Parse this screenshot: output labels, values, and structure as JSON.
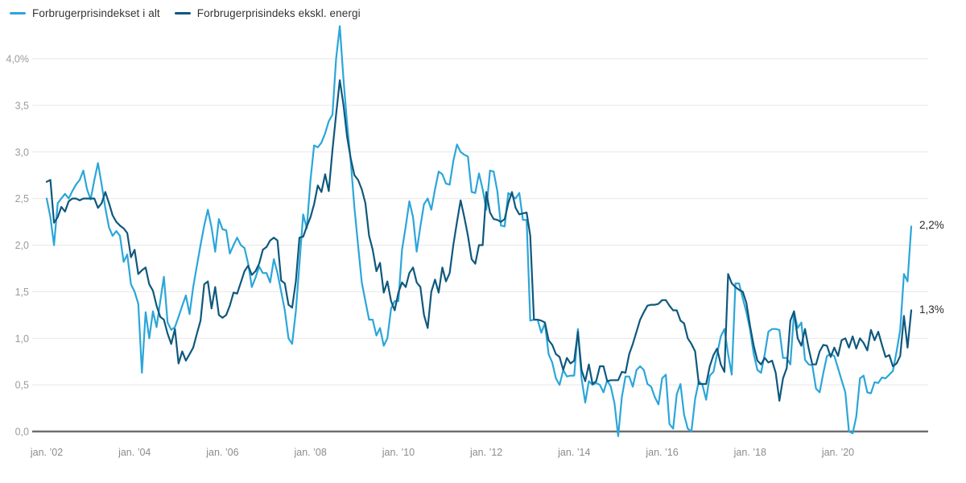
{
  "legend": [
    {
      "label": "Forbrugerprisindekset i alt",
      "color": "#2ba6d9"
    },
    {
      "label": "Forbrugerprisindeks ekskl. energi",
      "color": "#0f587d"
    }
  ],
  "end_labels": [
    {
      "text": "2,2%",
      "series": "Forbrugerprisindekset i alt"
    },
    {
      "text": "1,3%",
      "series": "Forbrugerprisindeks ekskl. energi"
    }
  ],
  "chart_data": {
    "type": "line",
    "unit": "%",
    "frequency": "monthly",
    "start": "jan. 2002",
    "end": "sep. 2021",
    "ylim": [
      0.0,
      4.0
    ],
    "y_tick_step": 0.5,
    "y_tick_labels": [
      "0,0",
      "0,5",
      "1,0",
      "1,5",
      "2,0",
      "2,5",
      "3,0",
      "3,5",
      "4,0%"
    ],
    "x_tick_labels": [
      "jan. ’02",
      "jan. ’04",
      "jan. ’06",
      "jan. ’08",
      "jan. ’10",
      "jan. ’12",
      "jan. ’14",
      "jan. ’16",
      "jan. ’18",
      "jan. ’20"
    ],
    "x_tick_months": [
      0,
      24,
      48,
      72,
      96,
      120,
      144,
      168,
      192,
      216
    ],
    "grid": true,
    "legend_position": "top-left",
    "series": [
      {
        "name": "Forbrugerprisindekset i alt",
        "color": "#2ba6d9",
        "final_value_label": "2,2%",
        "values": [
          2.5,
          2.3,
          2.0,
          2.45,
          2.5,
          2.55,
          2.5,
          2.58,
          2.65,
          2.7,
          2.8,
          2.6,
          2.49,
          2.7,
          2.88,
          2.65,
          2.4,
          2.19,
          2.1,
          2.15,
          2.1,
          1.82,
          1.9,
          1.58,
          1.5,
          1.37,
          0.63,
          1.28,
          1.0,
          1.29,
          1.12,
          1.4,
          1.66,
          1.17,
          1.09,
          1.12,
          1.23,
          1.35,
          1.46,
          1.26,
          1.55,
          1.78,
          2.0,
          2.21,
          2.38,
          2.19,
          1.93,
          2.28,
          2.17,
          2.16,
          1.91,
          2.0,
          2.08,
          2.0,
          1.97,
          1.8,
          1.55,
          1.65,
          1.77,
          1.7,
          1.7,
          1.6,
          1.85,
          1.7,
          1.5,
          1.3,
          1.0,
          0.94,
          1.29,
          1.8,
          2.33,
          2.18,
          2.7,
          3.07,
          3.05,
          3.1,
          3.2,
          3.33,
          3.4,
          4.0,
          4.35,
          3.79,
          3.3,
          2.9,
          2.4,
          2.0,
          1.6,
          1.4,
          1.2,
          1.2,
          1.03,
          1.11,
          0.92,
          1.0,
          1.32,
          1.4,
          1.4,
          1.95,
          2.2,
          2.47,
          2.3,
          1.93,
          2.2,
          2.44,
          2.5,
          2.38,
          2.6,
          2.79,
          2.76,
          2.66,
          2.65,
          2.9,
          3.08,
          3.0,
          2.97,
          2.95,
          2.57,
          2.56,
          2.77,
          2.6,
          2.38,
          2.8,
          2.79,
          2.58,
          2.21,
          2.2,
          2.56,
          2.53,
          2.5,
          2.56,
          2.27,
          2.27,
          1.19,
          1.2,
          1.2,
          1.06,
          1.16,
          0.83,
          0.74,
          0.57,
          0.5,
          0.66,
          0.59,
          0.6,
          0.6,
          1.1,
          0.57,
          0.31,
          0.54,
          0.5,
          0.52,
          0.5,
          0.42,
          0.55,
          0.48,
          0.3,
          -0.05,
          0.37,
          0.59,
          0.59,
          0.48,
          0.66,
          0.7,
          0.66,
          0.51,
          0.48,
          0.37,
          0.29,
          0.57,
          0.61,
          0.08,
          0.03,
          0.4,
          0.51,
          0.18,
          0.03,
          0.0,
          0.35,
          0.54,
          0.5,
          0.34,
          0.6,
          0.64,
          0.83,
          1.02,
          1.1,
          0.83,
          0.61,
          1.59,
          1.59,
          1.43,
          1.28,
          1.09,
          0.83,
          0.66,
          0.63,
          0.83,
          1.07,
          1.1,
          1.1,
          1.09,
          0.79,
          0.79,
          0.72,
          1.28,
          1.11,
          1.17,
          0.77,
          0.72,
          0.71,
          0.46,
          0.42,
          0.63,
          0.81,
          0.83,
          0.81,
          0.68,
          0.55,
          0.42,
          0.0,
          -0.02,
          0.16,
          0.57,
          0.6,
          0.42,
          0.41,
          0.53,
          0.52,
          0.58,
          0.57,
          0.61,
          0.65,
          0.86,
          1.09,
          1.69,
          1.61,
          2.2
        ]
      },
      {
        "name": "Forbrugerprisindeks ekskl. energi",
        "color": "#0f587d",
        "final_value_label": "1,3%",
        "values": [
          2.68,
          2.7,
          2.24,
          2.3,
          2.41,
          2.36,
          2.47,
          2.5,
          2.5,
          2.48,
          2.5,
          2.5,
          2.5,
          2.5,
          2.4,
          2.45,
          2.57,
          2.45,
          2.32,
          2.25,
          2.21,
          2.18,
          2.13,
          1.87,
          1.95,
          1.69,
          1.73,
          1.76,
          1.58,
          1.51,
          1.35,
          1.23,
          1.2,
          1.05,
          0.94,
          1.1,
          0.73,
          0.86,
          0.76,
          0.83,
          0.9,
          1.05,
          1.19,
          1.58,
          1.61,
          1.32,
          1.55,
          1.25,
          1.22,
          1.25,
          1.35,
          1.49,
          1.48,
          1.6,
          1.72,
          1.78,
          1.68,
          1.72,
          1.8,
          1.95,
          1.98,
          2.05,
          2.08,
          2.05,
          1.62,
          1.59,
          1.36,
          1.33,
          1.61,
          2.08,
          2.09,
          2.2,
          2.3,
          2.44,
          2.64,
          2.57,
          2.76,
          2.58,
          3.02,
          3.4,
          3.77,
          3.51,
          3.16,
          2.93,
          2.75,
          2.7,
          2.6,
          2.45,
          2.1,
          1.95,
          1.72,
          1.81,
          1.49,
          1.61,
          1.4,
          1.3,
          1.49,
          1.6,
          1.55,
          1.7,
          1.76,
          1.6,
          1.55,
          1.25,
          1.11,
          1.5,
          1.63,
          1.49,
          1.76,
          1.61,
          1.7,
          2.0,
          2.25,
          2.48,
          2.3,
          2.1,
          1.85,
          1.8,
          2.0,
          2.0,
          2.57,
          2.35,
          2.28,
          2.27,
          2.25,
          2.28,
          2.45,
          2.57,
          2.4,
          2.33,
          2.34,
          2.35,
          2.1,
          1.2,
          1.2,
          1.19,
          1.17,
          0.98,
          0.93,
          0.83,
          0.8,
          0.66,
          0.79,
          0.73,
          0.76,
          1.07,
          0.66,
          0.54,
          0.72,
          0.51,
          0.54,
          0.7,
          0.7,
          0.54,
          0.55,
          0.55,
          0.55,
          0.64,
          0.63,
          0.83,
          0.94,
          1.07,
          1.2,
          1.28,
          1.35,
          1.36,
          1.36,
          1.37,
          1.41,
          1.41,
          1.35,
          1.3,
          1.3,
          1.19,
          1.16,
          1.0,
          0.94,
          0.86,
          0.51,
          0.51,
          0.51,
          0.7,
          0.82,
          0.89,
          0.72,
          0.64,
          1.69,
          1.59,
          1.55,
          1.52,
          1.5,
          1.38,
          1.13,
          0.92,
          0.76,
          0.72,
          0.79,
          0.74,
          0.76,
          0.63,
          0.33,
          0.57,
          0.68,
          1.19,
          1.29,
          1.0,
          0.92,
          1.1,
          0.89,
          0.72,
          0.72,
          0.86,
          0.93,
          0.92,
          0.8,
          0.9,
          0.81,
          0.98,
          1.0,
          0.9,
          1.02,
          0.89,
          1.0,
          0.95,
          0.87,
          1.09,
          0.98,
          1.07,
          0.93,
          0.8,
          0.82,
          0.7,
          0.73,
          0.81,
          1.24,
          0.9,
          1.3
        ]
      }
    ]
  }
}
